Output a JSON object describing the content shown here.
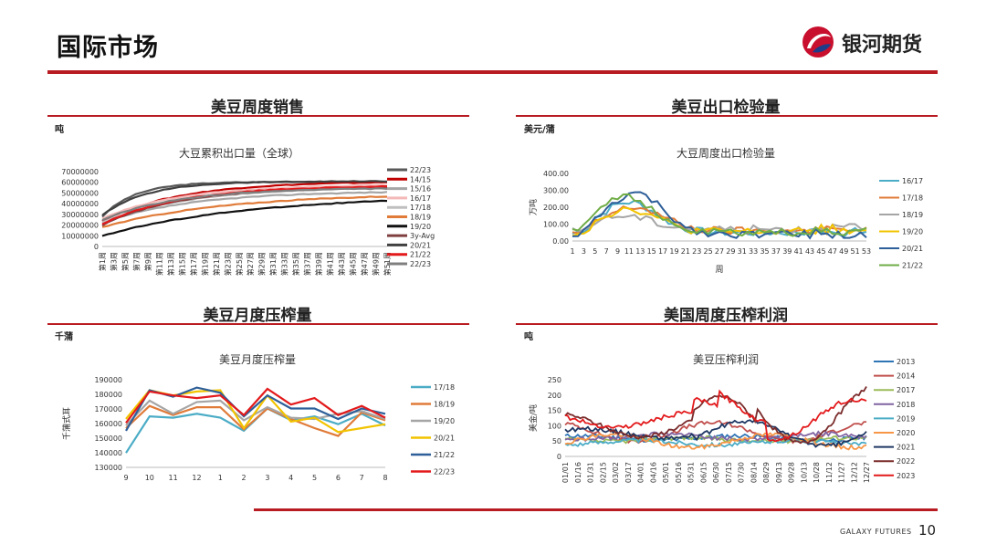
{
  "header": {
    "title": "国际市场",
    "logo_text": "银河期货"
  },
  "footer": {
    "brand": "GALAXY FUTURES",
    "page": "10"
  },
  "panels": [
    {
      "title": "美豆周度销售",
      "unit": "吨"
    },
    {
      "title": "美豆出口检验量",
      "unit": "美元/蒲"
    },
    {
      "title": "美豆月度压榨量",
      "unit": "千蒲"
    },
    {
      "title": "美国周度压榨利润",
      "unit": "吨"
    }
  ],
  "chart_data": [
    {
      "type": "line",
      "title": "大豆累积出口量（全球）",
      "yticks": [
        "70000000",
        "60000000",
        "50000000",
        "40000000",
        "30000000",
        "20000000",
        "10000000",
        "0"
      ],
      "ylim": [
        0,
        70000000
      ],
      "xticks": [
        "第1周",
        "第3周",
        "第5周",
        "第7周",
        "第9周",
        "第11周",
        "第13周",
        "第15周",
        "第17周",
        "第19周",
        "第21周",
        "第23周",
        "第25周",
        "第27周",
        "第29周",
        "第31周",
        "第33周",
        "第35周",
        "第37周",
        "第39周",
        "第41周",
        "第43周",
        "第45周",
        "第47周",
        "第49周",
        "第51周"
      ],
      "legend_position": "right",
      "series": [
        {
          "name": "22/23",
          "color": "#595959",
          "start": 28000000,
          "end": 60500000,
          "k": 6
        },
        {
          "name": "14/15",
          "color": "#c00000",
          "start": 24000000,
          "end": 61000000,
          "k": 14
        },
        {
          "name": "15/16",
          "color": "#a5a5a5",
          "start": 22000000,
          "end": 52000000,
          "k": 16
        },
        {
          "name": "16/17",
          "color": "#f4b8b8",
          "start": 26000000,
          "end": 58000000,
          "k": 14
        },
        {
          "name": "17/18",
          "color": "#bfbfbf",
          "start": 23000000,
          "end": 56000000,
          "k": 16
        },
        {
          "name": "18/19",
          "color": "#e07b39",
          "start": 18000000,
          "end": 50000000,
          "k": 22
        },
        {
          "name": "19/20",
          "color": "#111111",
          "start": 10000000,
          "end": 48000000,
          "k": 26
        },
        {
          "name": "3y-Avg",
          "color": "#7f3f3f",
          "start": 20000000,
          "end": 56000000,
          "k": 14
        },
        {
          "name": "20/21",
          "color": "#404040",
          "start": 29000000,
          "end": 61000000,
          "k": 8
        },
        {
          "name": "21/22",
          "color": "#e31a1c",
          "start": 21000000,
          "end": 57000000,
          "k": 14
        },
        {
          "name": "22/23",
          "color": "#7f7f7f",
          "start": 25000000,
          "end": 55000000,
          "k": 14
        }
      ]
    },
    {
      "type": "line",
      "title": "大豆周度出口检验量",
      "ylabel": "万吨",
      "xlabel": "周",
      "yticks": [
        "400.00",
        "300.00",
        "200.00",
        "100.00",
        "0.00"
      ],
      "ylim": [
        0,
        400
      ],
      "xticks": [
        "1",
        "3",
        "5",
        "7",
        "9",
        "11",
        "13",
        "15",
        "17",
        "19",
        "21",
        "23",
        "25",
        "27",
        "29",
        "31",
        "33",
        "35",
        "37",
        "39",
        "41",
        "43",
        "45",
        "47",
        "49",
        "51",
        "53"
      ],
      "legend_position": "right",
      "series": [
        {
          "name": "16/17",
          "color": "#4bacc6",
          "peak": 230,
          "base": 50,
          "phase": 1
        },
        {
          "name": "17/18",
          "color": "#e07b39",
          "peak": 200,
          "base": 60,
          "phase": 2
        },
        {
          "name": "18/19",
          "color": "#a5a5a5",
          "peak": 150,
          "base": 70,
          "phase": 3
        },
        {
          "name": "19/20",
          "color": "#f2c300",
          "peak": 190,
          "base": 55,
          "phase": 4
        },
        {
          "name": "20/21",
          "color": "#2e5f99",
          "peak": 280,
          "base": 40,
          "phase": 5
        },
        {
          "name": "21/22",
          "color": "#70ad47",
          "peak": 270,
          "base": 50,
          "phase": 6
        }
      ]
    },
    {
      "type": "line",
      "title": "美豆月度压榨量",
      "ylabel": "千蒲式耳",
      "yticks": [
        "190000",
        "180000",
        "170000",
        "160000",
        "150000",
        "140000",
        "130000"
      ],
      "ylim": [
        125000,
        192000
      ],
      "xticks": [
        "9",
        "10",
        "11",
        "12",
        "1",
        "2",
        "3",
        "4",
        "5",
        "6",
        "7",
        "8"
      ],
      "legend_position": "right",
      "series": [
        {
          "name": "17/18",
          "color": "#4bacc6",
          "values": [
            136000,
            164000,
            163000,
            166000,
            163000,
            153000,
            170000,
            161000,
            164000,
            158000,
            166000,
            157000
          ]
        },
        {
          "name": "18/19",
          "color": "#e07b39",
          "values": [
            155000,
            172000,
            165000,
            171000,
            171000,
            154000,
            170000,
            162000,
            155000,
            149000,
            167000,
            161000
          ]
        },
        {
          "name": "19/20",
          "color": "#a5a5a5",
          "values": [
            157000,
            176000,
            166000,
            175000,
            176000,
            161000,
            171000,
            163000,
            162000,
            166000,
            168000,
            162000
          ]
        },
        {
          "name": "20/21",
          "color": "#f2c300",
          "values": [
            162000,
            184000,
            180000,
            183000,
            184000,
            155000,
            180000,
            160000,
            163000,
            152000,
            155000,
            158000
          ]
        },
        {
          "name": "21/22",
          "color": "#2e5f99",
          "values": [
            153000,
            184000,
            179000,
            186000,
            182000,
            164000,
            180000,
            170000,
            170000,
            162000,
            170000,
            166000
          ]
        },
        {
          "name": "22/23",
          "color": "#e31a1c",
          "values": [
            159000,
            183000,
            180000,
            178000,
            180000,
            165000,
            185000,
            173000,
            178000,
            165000,
            172000,
            163000
          ]
        }
      ]
    },
    {
      "type": "line",
      "title": "美豆压榨利润",
      "ylabel": "美金/吨",
      "yticks": [
        "250",
        "200",
        "150",
        "100",
        "50",
        "0"
      ],
      "ylim": [
        0,
        250
      ],
      "xticks": [
        "01/01",
        "01/16",
        "01/31",
        "02/15",
        "03/02",
        "03/17",
        "04/01",
        "04/16",
        "05/01",
        "05/16",
        "05/31",
        "06/15",
        "06/30",
        "07/15",
        "07/30",
        "08/14",
        "08/29",
        "09/13",
        "09/28",
        "10/13",
        "10/28",
        "11/12",
        "11/27",
        "12/12",
        "12/27"
      ],
      "legend_position": "right",
      "series": [
        {
          "name": "2013",
          "color": "#2e75b6",
          "base": 60,
          "amp": 12,
          "phase": 1
        },
        {
          "name": "2014",
          "color": "#c0504d",
          "base": 80,
          "amp": 50,
          "phase": 2
        },
        {
          "name": "2017",
          "color": "#9bbb59",
          "base": 55,
          "amp": 10,
          "phase": 3
        },
        {
          "name": "2018",
          "color": "#8064a2",
          "base": 65,
          "amp": 15,
          "phase": 4
        },
        {
          "name": "2019",
          "color": "#4bacc6",
          "base": 45,
          "amp": 12,
          "phase": 5
        },
        {
          "name": "2020",
          "color": "#f79646",
          "base": 50,
          "amp": 35,
          "phase": 6
        },
        {
          "name": "2021",
          "color": "#1f3864",
          "base": 75,
          "amp": 25,
          "phase": 7
        },
        {
          "name": "2022",
          "color": "#7b2c2c",
          "base": 100,
          "amp": 60,
          "phase": 8
        },
        {
          "name": "2023",
          "color": "#e31a1c",
          "base": 120,
          "amp": 40,
          "phase": 9
        }
      ]
    }
  ]
}
